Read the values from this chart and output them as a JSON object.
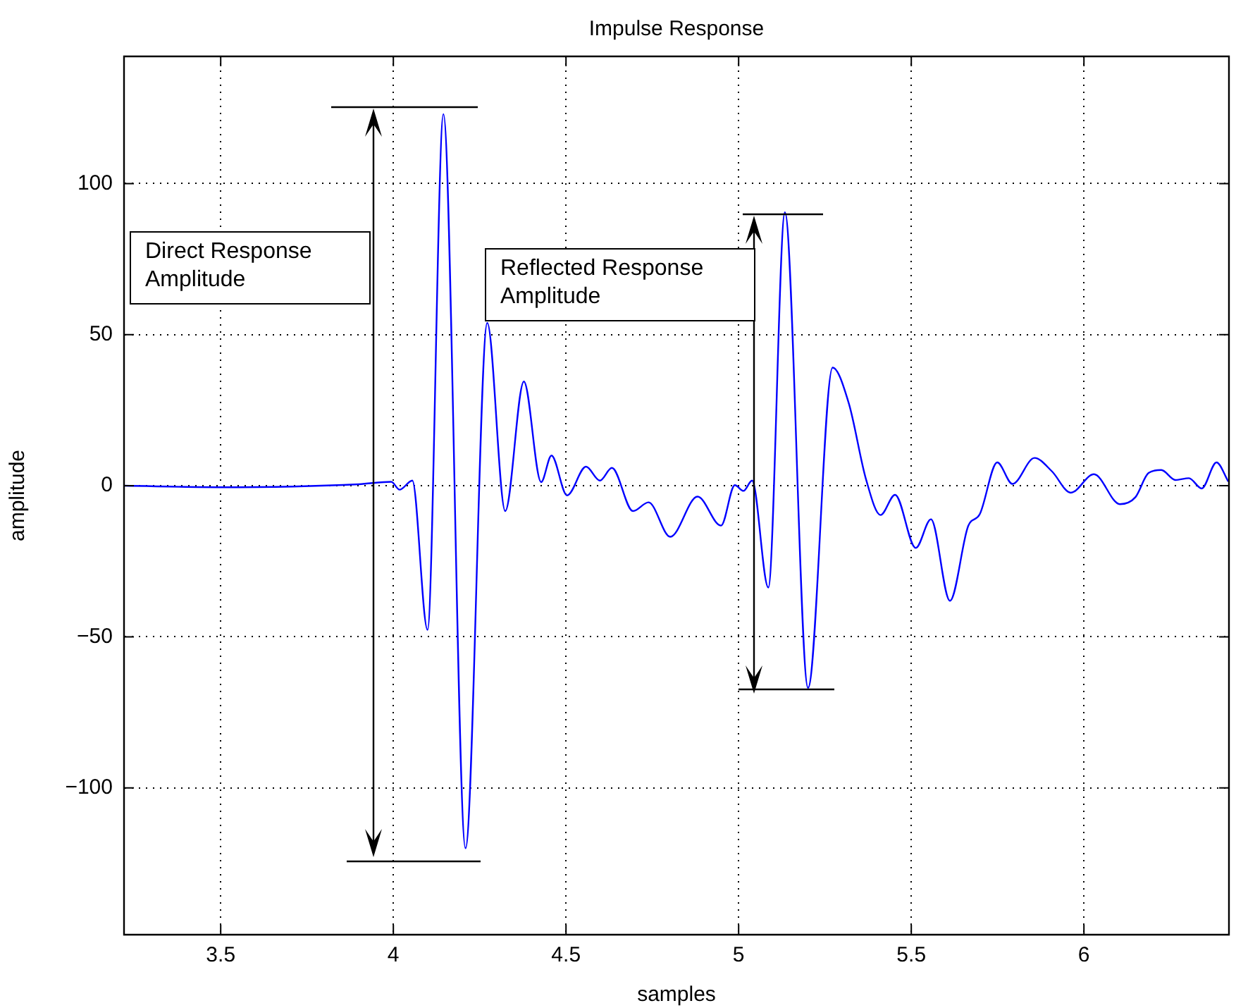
{
  "chart_data": {
    "type": "line",
    "title": "Impulse Response",
    "xlabel": "samples",
    "ylabel": "amplitude",
    "xlim": [
      3.22,
      6.42
    ],
    "ylim": [
      -148.6,
      142.1
    ],
    "xticks": [
      3.5,
      4,
      4.5,
      5,
      5.5,
      6
    ],
    "yticks": [
      {
        "value": -100,
        "label": "−100"
      },
      {
        "value": -50,
        "label": "−50"
      },
      0,
      50,
      100
    ],
    "grid": true,
    "marker": "none",
    "line_style": "solid",
    "annotations": [
      "Direct Response Amplitude",
      "Reflected Response Amplitude"
    ],
    "series": [
      {
        "color": "#0000ff",
        "x": [
          3.22,
          3.5,
          3.9,
          3.994,
          4.018,
          4.055,
          4.099,
          4.145,
          4.209,
          4.272,
          4.324,
          4.378,
          4.428,
          4.458,
          4.503,
          4.558,
          4.598,
          4.633,
          4.694,
          4.739,
          4.802,
          4.881,
          4.949,
          4.989,
          5.014,
          5.039,
          5.086,
          5.134,
          5.201,
          5.272,
          5.319,
          5.369,
          5.411,
          5.453,
          5.513,
          5.557,
          5.612,
          5.665,
          5.698,
          5.749,
          5.793,
          5.857,
          5.907,
          5.962,
          6.029,
          6.104,
          6.149,
          6.187,
          6.224,
          6.265,
          6.304,
          6.341,
          6.384,
          6.418
        ],
        "values": [
          0,
          -0.5,
          0.5,
          1.3,
          -1.3,
          1.7,
          -47.7,
          123,
          -120,
          53.9,
          -8.4,
          34.5,
          1.2,
          10,
          -3.2,
          6.3,
          1.7,
          5.9,
          -8.4,
          -5.5,
          -16.9,
          -3.6,
          -13.2,
          0.2,
          -1.7,
          1.7,
          -33.7,
          90.5,
          -66.9,
          39.1,
          27.3,
          2.1,
          -9.7,
          -3,
          -20.6,
          -11.1,
          -38.1,
          -13.3,
          -9.5,
          7.7,
          0.6,
          9.2,
          4.8,
          -2.3,
          3.8,
          -6.1,
          -3.8,
          4.2,
          5.2,
          1.9,
          2.5,
          -0.9,
          7.7,
          1.4
        ]
      }
    ]
  }
}
